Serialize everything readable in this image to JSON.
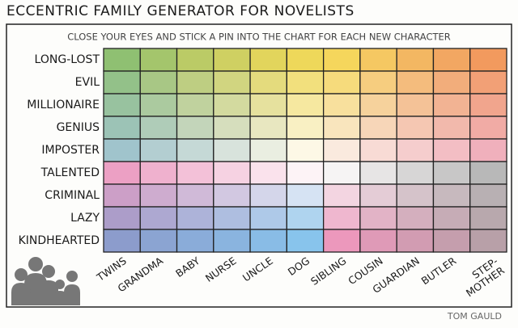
{
  "title": "ECCENTRIC FAMILY GENERATOR FOR NOVELISTS",
  "subtitle": "CLOSE YOUR EYES AND STICK A PIN INTO THE CHART FOR EACH NEW CHARACTER",
  "rows": [
    "LONG-LOST",
    "EVIL",
    "MILLIONAIRE",
    "GENIUS",
    "IMPOSTER",
    "TALENTED",
    "CRIMINAL",
    "LAZY",
    "KINDHEARTED"
  ],
  "columns": [
    "TWINS",
    "GRANDMA",
    "BABY",
    "NURSE",
    "UNCLE",
    "DOG",
    "SIBLING",
    "COUSIN",
    "GUARDIAN",
    "BUTLER",
    [
      "STEP-",
      "MOTHER"
    ]
  ],
  "credit": "TOM GAULD"
}
